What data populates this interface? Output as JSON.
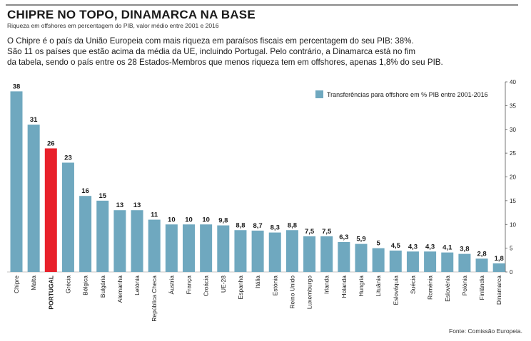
{
  "header": {
    "headline": "CHIPRE NO TOPO, DINAMARCA NA BASE",
    "subtitle": "Riqueza em offshores em percentagem do PIB, valor médio entre 2001 e 2016",
    "intro": [
      "O Chipre é o país da União Europeia com mais riqueza em paraísos fiscais em percentagem do seu PIB: 38%.",
      "São 11 os países que estão acima da média da UE, incluindo Portugal. Pelo contrário, a Dinamarca está no fim",
      "da tabela, sendo o país entre os 28 Estados-Membros que menos riqueza tem em offshores, apenas 1,8% do seu PIB."
    ]
  },
  "colors": {
    "bar": "#6fa8bf",
    "highlight": "#e8202a",
    "grid": "#cfcfcf",
    "text": "#1a1a1a"
  },
  "chart_data": {
    "type": "bar",
    "categories": [
      "Chipre",
      "Malta",
      "PORTUGAL",
      "Grécia",
      "Bélgica",
      "Bulgária",
      "Alemanha",
      "Letónia",
      "República Checa",
      "Áustria",
      "França",
      "Croácia",
      "UE-28",
      "Espanha",
      "Itália",
      "Estónia",
      "Reino Unido",
      "Luxemburgo",
      "Irlanda",
      "Holanda",
      "Hungria",
      "Lituânia",
      "Eslováquia",
      "Suécia",
      "Roménia",
      "Eslovénia",
      "Polónia",
      "Finlândia",
      "Dinamarca"
    ],
    "values": [
      38,
      31,
      26,
      23,
      16,
      15,
      13,
      13,
      11,
      10,
      10,
      10,
      9.8,
      8.8,
      8.7,
      8.3,
      8.8,
      7.5,
      7.5,
      6.3,
      5.9,
      5,
      4.5,
      4.3,
      4.3,
      4.1,
      3.8,
      2.8,
      1.8
    ],
    "value_labels": [
      "38",
      "31",
      "26",
      "23",
      "16",
      "15",
      "13",
      "13",
      "11",
      "10",
      "10",
      "10",
      "9,8",
      "8,8",
      "8,7",
      "8,3",
      "8,8",
      "7,5",
      "7,5",
      "6,3",
      "5,9",
      "5",
      "4,5",
      "4,3",
      "4,3",
      "4,1",
      "3,8",
      "2,8",
      "1,8"
    ],
    "highlight_category": "PORTUGAL",
    "series": [
      {
        "name": "Transferências para offshore em % PIB entre 2001-2016"
      }
    ],
    "ylim": [
      0,
      40
    ],
    "yticks": [
      0,
      5,
      10,
      15,
      20,
      25,
      30,
      35,
      40
    ],
    "y_axis_side": "right",
    "legend_position": "top-right",
    "grid": false
  },
  "footer": {
    "source": "Fonte: Comissão Europeia."
  }
}
